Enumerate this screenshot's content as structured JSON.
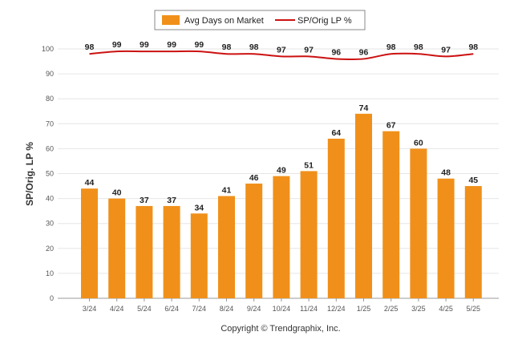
{
  "chart_data": {
    "type": "bar",
    "categories": [
      "3/24",
      "4/24",
      "5/24",
      "6/24",
      "7/24",
      "8/24",
      "9/24",
      "10/24",
      "11/24",
      "12/24",
      "1/25",
      "2/25",
      "3/25",
      "4/25",
      "5/25"
    ],
    "series": [
      {
        "name": "Avg Days on Market",
        "kind": "bar",
        "color": "#F0901A",
        "values": [
          44,
          40,
          37,
          37,
          34,
          41,
          46,
          49,
          51,
          64,
          74,
          67,
          60,
          48,
          45
        ]
      },
      {
        "name": "SP/Orig LP %",
        "kind": "line",
        "color": "#CC1111",
        "values": [
          98,
          99,
          99,
          99,
          99,
          98,
          98,
          97,
          97,
          96,
          96,
          98,
          98,
          97,
          98
        ]
      }
    ],
    "ylabel": "SP/Orig. LP %",
    "ylim": [
      0,
      100
    ],
    "yticks": [
      "0",
      "10",
      "20",
      "30",
      "40",
      "50",
      "60",
      "70",
      "80",
      "90",
      "100"
    ],
    "grid": true,
    "legend_position": "top-center"
  },
  "footer": {
    "copyright": "Copyright © Trendgraphix, Inc."
  }
}
